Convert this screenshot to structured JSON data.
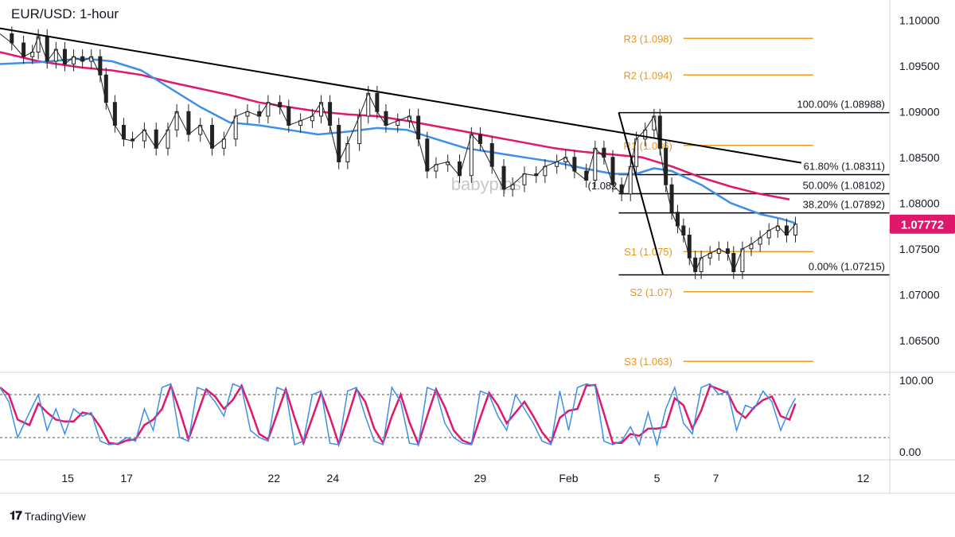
{
  "title": "EUR/USD: 1-hour",
  "brand": "TradingView",
  "watermark": "babypips",
  "current_price_label": "1.07772",
  "colors": {
    "ma_fast": "#3d8fe8",
    "ma_slow": "#e0186c",
    "pivot": "#f29d21",
    "trend": "#000000",
    "fib": "#000000",
    "candle": "#222222",
    "price_tag": "#e0186c",
    "stoch_k": "#3d8fe8",
    "stoch_d": "#e0186c"
  },
  "chart_data": {
    "type": "candlestick",
    "symbol": "EUR/USD",
    "timeframe": "1-hour",
    "y_axis": {
      "ticks": [
        "1.10000",
        "1.09500",
        "1.09000",
        "1.08500",
        "1.08000",
        "1.07500",
        "1.07000",
        "1.06500"
      ],
      "ylim": [
        1.0615,
        1.1015
      ]
    },
    "x_axis": {
      "ticks": [
        {
          "label": "15",
          "day": 15
        },
        {
          "label": "17",
          "day": 17
        },
        {
          "label": "22",
          "day": 22
        },
        {
          "label": "24",
          "day": 24
        },
        {
          "label": "29",
          "day": 29
        },
        {
          "label": "Feb",
          "day": 32
        },
        {
          "label": "5",
          "day": 35
        },
        {
          "label": "7",
          "day": 37
        },
        {
          "label": "12",
          "day": 42
        }
      ]
    },
    "pivot_levels": [
      {
        "label": "R3 (1.098)",
        "value": 1.098
      },
      {
        "label": "R2 (1.094)",
        "value": 1.094
      },
      {
        "label": "R1 (1.086)",
        "value": 1.0863
      },
      {
        "label": "S1 (1.075)",
        "value": 1.0747
      },
      {
        "label": "S2 (1.07)",
        "value": 1.0703
      },
      {
        "label": "S3 (1.063)",
        "value": 1.0627
      }
    ],
    "fibonacci": [
      {
        "label": "100.00% (1.08988)",
        "value": 1.08988
      },
      {
        "label": "61.80% (1.08311)",
        "value": 1.08311
      },
      {
        "label": "50.00% (1.08102)",
        "value": 1.08102
      },
      {
        "label": "38.20% (1.07892)",
        "value": 1.07892
      },
      {
        "label": "0.00% (1.07215)",
        "value": 1.07215
      }
    ],
    "fib_partial_label": "(1.082",
    "trendline": [
      {
        "day": 12.7,
        "price": 1.0991
      },
      {
        "day": 39.9,
        "price": 1.0844
      }
    ],
    "fib_swing": [
      {
        "day": 33.7,
        "price": 1.0899
      },
      {
        "day": 35.2,
        "price": 1.0722
      }
    ],
    "closes": [
      {
        "day": 12.7,
        "price": 1.0985
      },
      {
        "day": 13.1,
        "price": 1.0975
      },
      {
        "day": 13.5,
        "price": 1.096
      },
      {
        "day": 13.8,
        "price": 1.0965
      },
      {
        "day": 14.0,
        "price": 1.0982
      },
      {
        "day": 14.3,
        "price": 1.0955
      },
      {
        "day": 14.6,
        "price": 1.0968
      },
      {
        "day": 14.9,
        "price": 1.0952
      },
      {
        "day": 15.2,
        "price": 1.096
      },
      {
        "day": 15.5,
        "price": 1.0955
      },
      {
        "day": 15.8,
        "price": 1.096
      },
      {
        "day": 16.1,
        "price": 1.094
      },
      {
        "day": 16.3,
        "price": 1.091
      },
      {
        "day": 16.6,
        "price": 1.0885
      },
      {
        "day": 16.9,
        "price": 1.087
      },
      {
        "day": 17.2,
        "price": 1.0868
      },
      {
        "day": 17.6,
        "price": 1.088
      },
      {
        "day": 18.0,
        "price": 1.086
      },
      {
        "day": 18.4,
        "price": 1.088
      },
      {
        "day": 18.7,
        "price": 1.09
      },
      {
        "day": 19.1,
        "price": 1.0875
      },
      {
        "day": 19.5,
        "price": 1.0885
      },
      {
        "day": 19.9,
        "price": 1.086
      },
      {
        "day": 20.3,
        "price": 1.087
      },
      {
        "day": 20.7,
        "price": 1.0895
      },
      {
        "day": 21.1,
        "price": 1.09
      },
      {
        "day": 21.5,
        "price": 1.0895
      },
      {
        "day": 21.8,
        "price": 1.091
      },
      {
        "day": 22.2,
        "price": 1.0905
      },
      {
        "day": 22.5,
        "price": 1.0885
      },
      {
        "day": 22.9,
        "price": 1.089
      },
      {
        "day": 23.3,
        "price": 1.0895
      },
      {
        "day": 23.6,
        "price": 1.091
      },
      {
        "day": 23.9,
        "price": 1.0885
      },
      {
        "day": 24.2,
        "price": 1.0845
      },
      {
        "day": 24.5,
        "price": 1.0865
      },
      {
        "day": 24.9,
        "price": 1.0895
      },
      {
        "day": 25.2,
        "price": 1.092
      },
      {
        "day": 25.5,
        "price": 1.09
      },
      {
        "day": 25.8,
        "price": 1.0885
      },
      {
        "day": 26.2,
        "price": 1.089
      },
      {
        "day": 26.6,
        "price": 1.0895
      },
      {
        "day": 26.9,
        "price": 1.087
      },
      {
        "day": 27.2,
        "price": 1.0835
      },
      {
        "day": 27.5,
        "price": 1.0842
      },
      {
        "day": 27.9,
        "price": 1.0845
      },
      {
        "day": 28.3,
        "price": 1.083
      },
      {
        "day": 28.7,
        "price": 1.0875
      },
      {
        "day": 29.0,
        "price": 1.0865
      },
      {
        "day": 29.4,
        "price": 1.084
      },
      {
        "day": 29.8,
        "price": 1.0815
      },
      {
        "day": 30.1,
        "price": 1.082
      },
      {
        "day": 30.5,
        "price": 1.0832
      },
      {
        "day": 30.9,
        "price": 1.083
      },
      {
        "day": 31.2,
        "price": 1.084
      },
      {
        "day": 31.6,
        "price": 1.0845
      },
      {
        "day": 31.9,
        "price": 1.085
      },
      {
        "day": 32.2,
        "price": 1.0835
      },
      {
        "day": 32.6,
        "price": 1.0825
      },
      {
        "day": 32.9,
        "price": 1.086
      },
      {
        "day": 33.2,
        "price": 1.085
      },
      {
        "day": 33.5,
        "price": 1.082
      },
      {
        "day": 33.8,
        "price": 1.081
      },
      {
        "day": 34.1,
        "price": 1.084
      },
      {
        "day": 34.3,
        "price": 1.087
      },
      {
        "day": 34.6,
        "price": 1.088
      },
      {
        "day": 34.9,
        "price": 1.0895
      },
      {
        "day": 35.1,
        "price": 1.086
      },
      {
        "day": 35.3,
        "price": 1.082
      },
      {
        "day": 35.5,
        "price": 1.079
      },
      {
        "day": 35.7,
        "price": 1.0775
      },
      {
        "day": 35.9,
        "price": 1.0765
      },
      {
        "day": 36.1,
        "price": 1.074
      },
      {
        "day": 36.3,
        "price": 1.0725
      },
      {
        "day": 36.5,
        "price": 1.074
      },
      {
        "day": 36.8,
        "price": 1.0745
      },
      {
        "day": 37.1,
        "price": 1.075
      },
      {
        "day": 37.4,
        "price": 1.0745
      },
      {
        "day": 37.6,
        "price": 1.0725
      },
      {
        "day": 37.9,
        "price": 1.075
      },
      {
        "day": 38.2,
        "price": 1.0755
      },
      {
        "day": 38.5,
        "price": 1.0762
      },
      {
        "day": 38.8,
        "price": 1.077
      },
      {
        "day": 39.1,
        "price": 1.0775
      },
      {
        "day": 39.4,
        "price": 1.0765
      },
      {
        "day": 39.7,
        "price": 1.0777
      }
    ],
    "ma_fast": [
      {
        "day": 12.7,
        "price": 1.0952
      },
      {
        "day": 14.0,
        "price": 1.0954
      },
      {
        "day": 15.5,
        "price": 1.0958
      },
      {
        "day": 16.5,
        "price": 1.0955
      },
      {
        "day": 17.5,
        "price": 1.0945
      },
      {
        "day": 18.5,
        "price": 1.0925
      },
      {
        "day": 19.5,
        "price": 1.0905
      },
      {
        "day": 20.5,
        "price": 1.0888
      },
      {
        "day": 21.5,
        "price": 1.0885
      },
      {
        "day": 22.5,
        "price": 1.088
      },
      {
        "day": 23.5,
        "price": 1.0875
      },
      {
        "day": 24.5,
        "price": 1.0878
      },
      {
        "day": 25.5,
        "price": 1.0882
      },
      {
        "day": 26.5,
        "price": 1.088
      },
      {
        "day": 27.5,
        "price": 1.087
      },
      {
        "day": 28.5,
        "price": 1.086
      },
      {
        "day": 29.5,
        "price": 1.0855
      },
      {
        "day": 30.5,
        "price": 1.085
      },
      {
        "day": 31.5,
        "price": 1.0845
      },
      {
        "day": 32.5,
        "price": 1.0838
      },
      {
        "day": 33.5,
        "price": 1.0832
      },
      {
        "day": 34.3,
        "price": 1.0832
      },
      {
        "day": 34.9,
        "price": 1.0838
      },
      {
        "day": 35.5,
        "price": 1.0835
      },
      {
        "day": 36.5,
        "price": 1.082
      },
      {
        "day": 37.5,
        "price": 1.08
      },
      {
        "day": 38.5,
        "price": 1.0788
      },
      {
        "day": 39.2,
        "price": 1.0783
      },
      {
        "day": 39.7,
        "price": 1.0778
      }
    ],
    "ma_slow": [
      {
        "day": 12.7,
        "price": 1.0965
      },
      {
        "day": 14.0,
        "price": 1.0955
      },
      {
        "day": 15.5,
        "price": 1.0948
      },
      {
        "day": 16.5,
        "price": 1.0945
      },
      {
        "day": 17.5,
        "price": 1.094
      },
      {
        "day": 18.5,
        "price": 1.0932
      },
      {
        "day": 19.5,
        "price": 1.0925
      },
      {
        "day": 20.5,
        "price": 1.0918
      },
      {
        "day": 21.5,
        "price": 1.091
      },
      {
        "day": 22.5,
        "price": 1.0905
      },
      {
        "day": 23.5,
        "price": 1.09
      },
      {
        "day": 24.5,
        "price": 1.0897
      },
      {
        "day": 25.5,
        "price": 1.0895
      },
      {
        "day": 26.5,
        "price": 1.089
      },
      {
        "day": 27.5,
        "price": 1.0884
      },
      {
        "day": 28.5,
        "price": 1.0878
      },
      {
        "day": 29.5,
        "price": 1.0872
      },
      {
        "day": 30.5,
        "price": 1.0866
      },
      {
        "day": 31.5,
        "price": 1.086
      },
      {
        "day": 32.5,
        "price": 1.0856
      },
      {
        "day": 33.5,
        "price": 1.0853
      },
      {
        "day": 34.5,
        "price": 1.085
      },
      {
        "day": 35.5,
        "price": 1.084
      },
      {
        "day": 36.5,
        "price": 1.0828
      },
      {
        "day": 37.5,
        "price": 1.0818
      },
      {
        "day": 38.5,
        "price": 1.081
      },
      {
        "day": 39.5,
        "price": 1.0804
      }
    ]
  },
  "stochastic": {
    "ticks": [
      "100.00",
      "0.00"
    ],
    "ylim": [
      0,
      100
    ],
    "upper_band": 80,
    "lower_band": 20,
    "k": [
      {
        "day": 12.7,
        "v": 90
      },
      {
        "day": 13.0,
        "v": 70
      },
      {
        "day": 13.3,
        "v": 20
      },
      {
        "day": 13.7,
        "v": 55
      },
      {
        "day": 14.0,
        "v": 80
      },
      {
        "day": 14.3,
        "v": 30
      },
      {
        "day": 14.6,
        "v": 60
      },
      {
        "day": 14.9,
        "v": 25
      },
      {
        "day": 15.2,
        "v": 60
      },
      {
        "day": 15.5,
        "v": 50
      },
      {
        "day": 15.8,
        "v": 55
      },
      {
        "day": 16.1,
        "v": 15
      },
      {
        "day": 16.4,
        "v": 10
      },
      {
        "day": 16.7,
        "v": 12
      },
      {
        "day": 17.0,
        "v": 20
      },
      {
        "day": 17.3,
        "v": 15
      },
      {
        "day": 17.6,
        "v": 60
      },
      {
        "day": 17.9,
        "v": 30
      },
      {
        "day": 18.2,
        "v": 90
      },
      {
        "day": 18.5,
        "v": 95
      },
      {
        "day": 18.8,
        "v": 20
      },
      {
        "day": 19.1,
        "v": 15
      },
      {
        "day": 19.4,
        "v": 90
      },
      {
        "day": 19.7,
        "v": 85
      },
      {
        "day": 20.0,
        "v": 70
      },
      {
        "day": 20.3,
        "v": 50
      },
      {
        "day": 20.6,
        "v": 95
      },
      {
        "day": 20.9,
        "v": 90
      },
      {
        "day": 21.2,
        "v": 30
      },
      {
        "day": 21.5,
        "v": 20
      },
      {
        "day": 21.8,
        "v": 15
      },
      {
        "day": 22.1,
        "v": 90
      },
      {
        "day": 22.4,
        "v": 85
      },
      {
        "day": 22.7,
        "v": 10
      },
      {
        "day": 23.0,
        "v": 15
      },
      {
        "day": 23.3,
        "v": 80
      },
      {
        "day": 23.6,
        "v": 85
      },
      {
        "day": 23.9,
        "v": 12
      },
      {
        "day": 24.2,
        "v": 10
      },
      {
        "day": 24.5,
        "v": 85
      },
      {
        "day": 24.8,
        "v": 90
      },
      {
        "day": 25.1,
        "v": 50
      },
      {
        "day": 25.4,
        "v": 15
      },
      {
        "day": 25.7,
        "v": 10
      },
      {
        "day": 26.0,
        "v": 90
      },
      {
        "day": 26.3,
        "v": 70
      },
      {
        "day": 26.6,
        "v": 12
      },
      {
        "day": 26.9,
        "v": 10
      },
      {
        "day": 27.2,
        "v": 90
      },
      {
        "day": 27.5,
        "v": 85
      },
      {
        "day": 27.8,
        "v": 40
      },
      {
        "day": 28.1,
        "v": 20
      },
      {
        "day": 28.4,
        "v": 12
      },
      {
        "day": 28.7,
        "v": 10
      },
      {
        "day": 29.0,
        "v": 85
      },
      {
        "day": 29.3,
        "v": 80
      },
      {
        "day": 29.6,
        "v": 50
      },
      {
        "day": 29.9,
        "v": 30
      },
      {
        "day": 30.2,
        "v": 80
      },
      {
        "day": 30.5,
        "v": 60
      },
      {
        "day": 30.8,
        "v": 40
      },
      {
        "day": 31.1,
        "v": 15
      },
      {
        "day": 31.4,
        "v": 10
      },
      {
        "day": 31.7,
        "v": 85
      },
      {
        "day": 32.0,
        "v": 30
      },
      {
        "day": 32.3,
        "v": 90
      },
      {
        "day": 32.6,
        "v": 95
      },
      {
        "day": 32.9,
        "v": 92
      },
      {
        "day": 33.2,
        "v": 15
      },
      {
        "day": 33.5,
        "v": 10
      },
      {
        "day": 33.8,
        "v": 15
      },
      {
        "day": 34.1,
        "v": 35
      },
      {
        "day": 34.4,
        "v": 10
      },
      {
        "day": 34.7,
        "v": 55
      },
      {
        "day": 35.0,
        "v": 10
      },
      {
        "day": 35.3,
        "v": 60
      },
      {
        "day": 35.6,
        "v": 90
      },
      {
        "day": 35.9,
        "v": 40
      },
      {
        "day": 36.2,
        "v": 25
      },
      {
        "day": 36.5,
        "v": 90
      },
      {
        "day": 36.8,
        "v": 95
      },
      {
        "day": 37.1,
        "v": 80
      },
      {
        "day": 37.4,
        "v": 85
      },
      {
        "day": 37.7,
        "v": 30
      },
      {
        "day": 38.0,
        "v": 65
      },
      {
        "day": 38.3,
        "v": 60
      },
      {
        "day": 38.6,
        "v": 85
      },
      {
        "day": 38.9,
        "v": 70
      },
      {
        "day": 39.2,
        "v": 30
      },
      {
        "day": 39.5,
        "v": 60
      },
      {
        "day": 39.7,
        "v": 75
      }
    ]
  }
}
